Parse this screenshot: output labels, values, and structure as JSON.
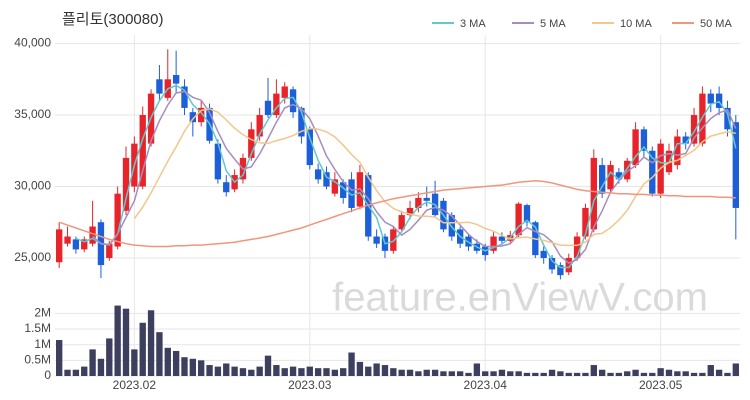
{
  "chart_data": {
    "type": "candlestick",
    "title": "플리토(300080)",
    "watermark": "feature.enViewV.com",
    "categories": [
      null,
      null,
      null,
      null,
      null,
      null,
      null,
      null,
      null,
      "2023.02",
      null,
      null,
      null,
      null,
      null,
      null,
      null,
      null,
      null,
      null,
      null,
      null,
      null,
      null,
      null,
      null,
      null,
      null,
      null,
      null,
      "2023.03",
      null,
      null,
      null,
      null,
      null,
      null,
      null,
      null,
      null,
      null,
      null,
      null,
      null,
      null,
      null,
      null,
      null,
      null,
      null,
      null,
      "2023.04",
      null,
      null,
      null,
      null,
      null,
      null,
      null,
      null,
      null,
      null,
      null,
      null,
      null,
      null,
      null,
      null,
      null,
      null,
      null,
      null,
      "2023.05",
      null,
      null,
      null,
      null,
      null,
      null,
      null,
      null,
      null
    ],
    "open": [
      24700,
      26000,
      26300,
      25600,
      26000,
      27500,
      25000,
      25800,
      28300,
      30000,
      30000,
      33000,
      37500,
      36200,
      37800,
      37000,
      35200,
      34500,
      35500,
      33000,
      30300,
      29800,
      30500,
      32000,
      33500,
      36000,
      35000,
      36200,
      36800,
      35500,
      34000,
      31200,
      31000,
      29500,
      30300,
      30500,
      28600,
      30800,
      26500,
      26500,
      25500,
      27000,
      28000,
      28500,
      29200,
      29500,
      29000,
      28000,
      27000,
      26500,
      26000,
      25800,
      25500,
      26500,
      26200,
      26600,
      28700,
      27500,
      25500,
      25000,
      24500,
      24000,
      25000,
      26500,
      27000,
      31500,
      29800,
      31000,
      30500,
      31500,
      34000,
      32500,
      29500,
      31000,
      31500,
      33500,
      33000,
      33000,
      36500,
      36500,
      35500,
      34500
    ],
    "high": [
      27500,
      27200,
      26500,
      26500,
      29000,
      27700,
      26200,
      30000,
      32800,
      33500,
      35600,
      36800,
      38500,
      39600,
      39500,
      37500,
      35500,
      36000,
      35800,
      33300,
      30800,
      31200,
      32300,
      34500,
      35500,
      37600,
      37500,
      37300,
      37000,
      35600,
      34200,
      31600,
      31400,
      31000,
      30500,
      31000,
      31500,
      31000,
      27000,
      26700,
      27200,
      28300,
      29000,
      29600,
      30000,
      30400,
      29200,
      28200,
      27200,
      26700,
      26300,
      26000,
      26800,
      26800,
      26900,
      28900,
      28800,
      27600,
      25800,
      25200,
      24700,
      25300,
      26800,
      28800,
      32600,
      32000,
      31800,
      31300,
      32000,
      34500,
      34200,
      32800,
      33300,
      33000,
      34000,
      33800,
      35500,
      37000,
      36800,
      37000,
      36000,
      35000
    ],
    "low": [
      24300,
      25800,
      25300,
      25400,
      25800,
      23600,
      24800,
      25600,
      28000,
      29600,
      29800,
      32800,
      36000,
      36000,
      36500,
      35000,
      33500,
      34200,
      33000,
      30200,
      29300,
      29600,
      30200,
      31800,
      33200,
      34800,
      34800,
      35800,
      34800,
      33000,
      31200,
      30200,
      29800,
      29300,
      28800,
      28200,
      28400,
      26200,
      25700,
      25000,
      25300,
      26800,
      27700,
      28200,
      28600,
      27800,
      26800,
      26200,
      25700,
      25500,
      25300,
      24800,
      25300,
      26000,
      26000,
      26400,
      27200,
      25000,
      24600,
      23900,
      23500,
      23800,
      24800,
      26300,
      26800,
      29200,
      29500,
      30200,
      30300,
      31300,
      32000,
      29300,
      29200,
      30800,
      31200,
      32600,
      32800,
      32800,
      35200,
      35000,
      33500,
      26300
    ],
    "close": [
      27000,
      26500,
      25600,
      26300,
      27200,
      24500,
      26000,
      29500,
      32000,
      33000,
      35000,
      36500,
      36500,
      37500,
      37200,
      35500,
      34500,
      35500,
      33200,
      30500,
      29600,
      30800,
      32000,
      34000,
      35000,
      35000,
      36500,
      37000,
      35200,
      33500,
      31500,
      30500,
      30000,
      30500,
      29200,
      28500,
      31000,
      26500,
      26000,
      25500,
      27000,
      28000,
      28500,
      29200,
      29000,
      28000,
      27000,
      26500,
      26000,
      25800,
      25500,
      25200,
      26500,
      26200,
      26600,
      28800,
      27500,
      25200,
      25000,
      24200,
      23800,
      25000,
      26500,
      28500,
      32000,
      29500,
      31500,
      30500,
      31800,
      34000,
      32500,
      29500,
      33000,
      32500,
      33500,
      33000,
      35000,
      36500,
      35800,
      35500,
      34000,
      28500
    ],
    "up_color": "#e8232a",
    "down_color": "#1c5fd8",
    "series": [
      {
        "name": "3 MA",
        "color": "#5fc9cf",
        "values": [
          null,
          null,
          26367,
          26133,
          26367,
          26000,
          25900,
          26667,
          29167,
          31500,
          33333,
          34833,
          36000,
          36833,
          37067,
          36733,
          35733,
          35167,
          34400,
          33067,
          31100,
          30300,
          30800,
          32267,
          33667,
          34667,
          35500,
          36167,
          36233,
          35233,
          33400,
          31833,
          30667,
          30333,
          29900,
          29400,
          29567,
          28667,
          27833,
          26000,
          26167,
          26833,
          27833,
          28567,
          28900,
          28733,
          28000,
          27167,
          26500,
          26100,
          25767,
          25500,
          25733,
          25967,
          26433,
          27200,
          27633,
          27167,
          25900,
          24800,
          24333,
          24333,
          25100,
          26667,
          29000,
          30000,
          31000,
          30500,
          31267,
          32100,
          32767,
          32000,
          31667,
          31667,
          33000,
          33000,
          33833,
          34833,
          35767,
          35933,
          35100,
          32667
        ]
      },
      {
        "name": "5 MA",
        "color": "#a88cbf",
        "values": [
          null,
          null,
          null,
          null,
          26520,
          26020,
          25920,
          26700,
          27840,
          29000,
          31100,
          33200,
          34600,
          35700,
          36540,
          36640,
          36240,
          36040,
          35180,
          33840,
          32660,
          31920,
          31220,
          31380,
          32280,
          33360,
          34500,
          35500,
          35740,
          35440,
          34740,
          33540,
          32140,
          31200,
          30340,
          29740,
          29840,
          29140,
          28240,
          27500,
          27200,
          26600,
          27000,
          27640,
          28340,
          28540,
          28340,
          27940,
          27300,
          26660,
          26160,
          25800,
          25800,
          25840,
          26000,
          26660,
          27120,
          26860,
          26620,
          26140,
          25140,
          24640,
          24900,
          25600,
          27160,
          28300,
          29600,
          30400,
          31060,
          31460,
          32060,
          31660,
          32160,
          32300,
          32200,
          32300,
          33400,
          34100,
          34760,
          35160,
          35360,
          34060
        ]
      },
      {
        "name": "10 MA",
        "color": "#f3c68c",
        "values": [
          null,
          null,
          null,
          null,
          null,
          null,
          null,
          null,
          null,
          27760,
          28560,
          29560,
          30650,
          31770,
          32770,
          33870,
          34720,
          35320,
          35440,
          35190,
          34650,
          34080,
          33630,
          33280,
          33060,
          33010,
          33210,
          33360,
          33560,
          33860,
          34050,
          34020,
          33820,
          33470,
          32890,
          32240,
          31690,
          30640,
          29720,
          28920,
          28470,
          28220,
          28070,
          27940,
          27920,
          27870,
          27470,
          27470,
          27470,
          27500,
          27350,
          27070,
          26870,
          26570,
          26330,
          26410,
          26460,
          26330,
          26230,
          26070,
          25900,
          25880,
          25880,
          26110,
          26650,
          26720,
          27120,
          27650,
          28330,
          29310,
          30180,
          30630,
          31280,
          31680,
          31830,
          32180,
          32530,
          33130,
          33530,
          33680,
          33830,
          33730
        ]
      },
      {
        "name": "50 MA",
        "color": "#f2957d",
        "values": [
          27500,
          27300,
          27100,
          26900,
          26700,
          26500,
          26300,
          26150,
          26000,
          25900,
          25850,
          25800,
          25800,
          25800,
          25850,
          25850,
          25900,
          25900,
          25950,
          26000,
          26050,
          26100,
          26200,
          26300,
          26400,
          26500,
          26650,
          26800,
          26950,
          27100,
          27300,
          27500,
          27700,
          27900,
          28100,
          28300,
          28500,
          28700,
          28850,
          29000,
          29150,
          29250,
          29350,
          29450,
          29550,
          29650,
          29750,
          29800,
          29850,
          29900,
          29950,
          30000,
          30050,
          30100,
          30200,
          30300,
          30350,
          30400,
          30350,
          30250,
          30100,
          29950,
          29800,
          29700,
          29650,
          29600,
          29550,
          29500,
          29500,
          29450,
          29450,
          29400,
          29400,
          29350,
          29350,
          29300,
          29300,
          29300,
          29300,
          29250,
          29250,
          29200
        ]
      }
    ],
    "ylim": [
      22200,
      40600
    ],
    "yticks": [
      {
        "value": 25000,
        "label": "25,000"
      },
      {
        "value": 30000,
        "label": "30,000"
      },
      {
        "value": 35000,
        "label": "35,000"
      },
      {
        "value": 40000,
        "label": "40,000"
      }
    ],
    "grid": true,
    "legend": "top-right",
    "volume": {
      "color": "#3d3f5e",
      "values": [
        1150000,
        200000,
        200000,
        300000,
        850000,
        550000,
        1200000,
        2250000,
        2150000,
        850000,
        1700000,
        2100000,
        1400000,
        900000,
        800000,
        600000,
        550000,
        500000,
        350000,
        300000,
        400000,
        300000,
        250000,
        200000,
        300000,
        650000,
        350000,
        250000,
        300000,
        250000,
        300000,
        250000,
        250000,
        200000,
        250000,
        750000,
        450000,
        300000,
        400000,
        350000,
        250000,
        200000,
        200000,
        150000,
        200000,
        200000,
        150000,
        150000,
        150000,
        100000,
        400000,
        150000,
        150000,
        200000,
        150000,
        150000,
        100000,
        100000,
        100000,
        200000,
        150000,
        100000,
        100000,
        100000,
        350000,
        200000,
        100000,
        100000,
        150000,
        200000,
        100000,
        100000,
        250000,
        200000,
        150000,
        150000,
        100000,
        100000,
        350000,
        200000,
        100000,
        400000
      ],
      "ylim": [
        0,
        2300000
      ],
      "yticks": [
        0,
        {
          "value": 500000,
          "label": "0.5M"
        },
        {
          "value": 1000000,
          "label": "1M"
        },
        {
          "value": 1500000,
          "label": "1.5M"
        },
        {
          "value": 2000000,
          "label": "2M"
        }
      ]
    }
  }
}
